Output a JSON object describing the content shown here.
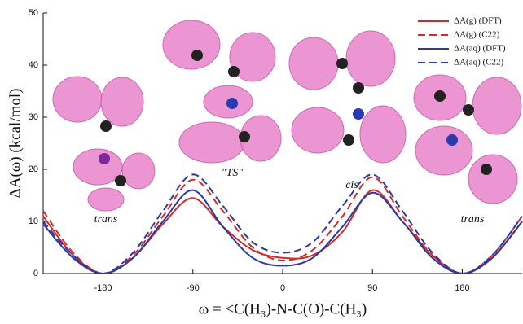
{
  "chart_data": {
    "type": "line",
    "y_label": "ΔA(ω) (kcal/mol)",
    "x_label": "ω = <C(H₃)-N-C(O)-C(H₃)",
    "x": [
      -240,
      -210,
      -180,
      -150,
      -120,
      -90,
      -60,
      -30,
      0,
      30,
      60,
      90,
      120,
      150,
      180,
      210,
      240
    ],
    "series": [
      {
        "name": "ΔA(g) (DFT)",
        "color": "#d32a2a",
        "dash": false,
        "values": [
          11,
          3.5,
          0,
          3,
          9.5,
          14.5,
          9,
          4.5,
          3,
          3.5,
          8,
          16,
          10,
          3.5,
          0,
          3,
          10
        ]
      },
      {
        "name": "ΔA(g) (C22)",
        "color": "#d32a2a",
        "dash": true,
        "values": [
          12,
          4,
          0,
          3.5,
          11,
          18,
          12,
          5,
          2.5,
          4.5,
          11,
          18.5,
          11,
          3.5,
          0,
          3.5,
          11
        ]
      },
      {
        "name": "ΔA(aq) (DFT)",
        "color": "#2b3a9e",
        "dash": false,
        "values": [
          9.5,
          3,
          0,
          3,
          10,
          16,
          9,
          3,
          1.5,
          3,
          9,
          15.5,
          10,
          3,
          0,
          3,
          10
        ]
      },
      {
        "name": "ΔA(aq) (C22)",
        "color": "#2b3a9e",
        "dash": true,
        "values": [
          10,
          3.5,
          0,
          4,
          12,
          19,
          13,
          6,
          4,
          6,
          13,
          19,
          12,
          4,
          0,
          3.5,
          11
        ]
      }
    ],
    "xlim": [
      -240,
      240
    ],
    "ylim": [
      0,
      50
    ],
    "xticks": [
      -180,
      -90,
      0,
      90,
      180
    ],
    "yticks": [
      0,
      10,
      20,
      30,
      40,
      50
    ],
    "annotations": [
      "trans",
      "\"TS\"",
      "cis",
      "trans"
    ],
    "legend": "top-right"
  }
}
